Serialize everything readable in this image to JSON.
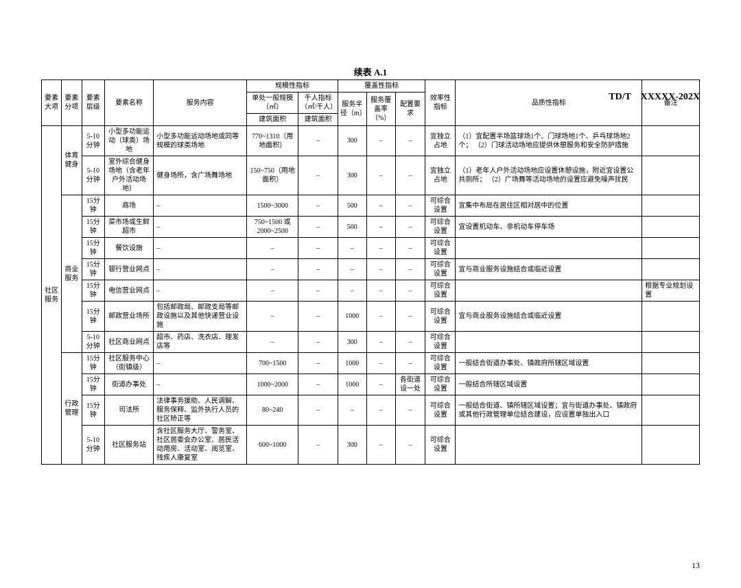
{
  "doc_code": "TD/T　XXXXX-202X",
  "title": "续表 A.1",
  "page_num": "13",
  "headers": {
    "h1": "要素大项",
    "h2": "要素分项",
    "h3": "要素层级",
    "h4": "要素名称",
    "h5": "服务内容",
    "h6": "规模性指标",
    "h6a": "单处一般规模（㎡）",
    "h6b": "千人指标（㎡/千人）",
    "h6a2": "建筑面积",
    "h6b2": "建筑面积",
    "h7": "覆盖性指标",
    "h7a": "服务半径（m）",
    "h7b": "服务覆盖率（%）",
    "h7c": "配置要求",
    "h8": "效率性指标",
    "h9": "品质性指标",
    "h10": "备注"
  },
  "major": "社区服务",
  "cat_sport": "体育健身",
  "cat_biz": "商业服务",
  "cat_admin": "行政管理",
  "rows": [
    {
      "lvl": "5-10分钟",
      "name": "小型多功能运动（球类）场地",
      "svc": "小型多功能运动场地或同等规模的球类场地",
      "scale": "770~1310（用地面积）",
      "ti": "–",
      "rad": "300",
      "cov": "–",
      "cfg": "–",
      "eff": "宜独立占地",
      "qual": "（1）宜配置半场篮球场1个、门球场地1个、乒乓球场地2个；\n（2）门球活动场地应提供休憩服务和安全防护措施",
      "note": ""
    },
    {
      "lvl": "5-10分钟",
      "name": "室外综合健身场地（含老年户外活动场地）",
      "svc": "健身场所，含广场舞场地",
      "scale": "150~750（用地面积）",
      "ti": "–",
      "rad": "300",
      "cov": "–",
      "cfg": "–",
      "eff": "宜独立占地",
      "qual": "（1）老年人户外活动场地应设置休憩设施，附近宜设置公共厕所；\n（2）广场舞等活动场地的设置应避免噪声扰民",
      "note": ""
    },
    {
      "lvl": "15分钟",
      "name": "商场",
      "svc": "–",
      "scale": "1500~3000",
      "ti": "–",
      "rad": "500",
      "cov": "–",
      "cfg": "–",
      "eff": "可综合设置",
      "qual": "宜集中布局在居住区相对居中的位置",
      "note": ""
    },
    {
      "lvl": "15分钟",
      "name": "菜市场或生鲜超市",
      "svc": "–",
      "scale": "750~1500 或 2000~2500",
      "ti": "–",
      "rad": "500",
      "cov": "–",
      "cfg": "–",
      "eff": "可综合设置",
      "qual": "宜设置机动车、非机动车停车场",
      "note": ""
    },
    {
      "lvl": "15分钟",
      "name": "餐饮设施",
      "svc": "–",
      "scale": "–",
      "ti": "–",
      "rad": "–",
      "cov": "–",
      "cfg": "–",
      "eff": "可综合设置",
      "qual": "",
      "note": ""
    },
    {
      "lvl": "15分钟",
      "name": "银行营业网点",
      "svc": "–",
      "scale": "–",
      "ti": "–",
      "rad": "–",
      "cov": "–",
      "cfg": "–",
      "eff": "可综合设置",
      "qual": "宜与商业服务设施结合或临近设置",
      "note": ""
    },
    {
      "lvl": "15分钟",
      "name": "电信营业网点",
      "svc": "–",
      "scale": "–",
      "ti": "–",
      "rad": "–",
      "cov": "–",
      "cfg": "–",
      "eff": "可综合设置",
      "qual": "",
      "note": "根据专业规划设置"
    },
    {
      "lvl": "15分钟",
      "name": "邮政营业场所",
      "svc": "包括邮政局、邮政支局等邮政设施以及其他快递营业设施",
      "scale": "–",
      "ti": "–",
      "rad": "1000",
      "cov": "–",
      "cfg": "–",
      "eff": "可综合设置",
      "qual": "宜与商业服务设施结合或临近设置",
      "note": ""
    },
    {
      "lvl": "5-10分钟",
      "name": "社区商业网点",
      "svc": "超市、药店、洗衣店、理发店等",
      "scale": "–",
      "ti": "–",
      "rad": "300",
      "cov": "–",
      "cfg": "–",
      "eff": "可综合设置",
      "qual": "",
      "note": ""
    },
    {
      "lvl": "15分钟",
      "name": "社区服务中心（街镇级）",
      "svc": "–",
      "scale": "700~1500",
      "ti": "–",
      "rad": "1000",
      "cov": "–",
      "cfg": "–",
      "eff": "可综合设置",
      "qual": "一般结合街道办事处、镇政府所辖区域设置",
      "note": ""
    },
    {
      "lvl": "15分钟",
      "name": "街道办事处",
      "svc": "–",
      "scale": "1000~2000",
      "ti": "–",
      "rad": "1000",
      "cov": "–",
      "cfg": "各街道设一处",
      "eff": "可综合设置",
      "qual": "一般结合所辖区域设置",
      "note": ""
    },
    {
      "lvl": "15分钟",
      "name": "司法所",
      "svc": "法律事务援助、人民调解、服务保释、监外执行人员的社区矫正等",
      "scale": "80~240",
      "ti": "–",
      "rad": "–",
      "cov": "–",
      "cfg": "–",
      "eff": "可综合设置",
      "qual": "一般结合街道、镇所辖区域设置；宜与街道办事处、镇政府或其他行政管理单位结合建设，应设置单独出入口",
      "note": ""
    },
    {
      "lvl": "5-10分钟",
      "name": "社区服务站",
      "svc": "含社区服务大厅、警务室、社区居委会办公室、居民活动用房、活动室、阅览室、残疾人康复室",
      "scale": "600~1000",
      "ti": "–",
      "rad": "300",
      "cov": "–",
      "cfg": "–",
      "eff": "可综合设置",
      "qual": "",
      "note": ""
    }
  ]
}
